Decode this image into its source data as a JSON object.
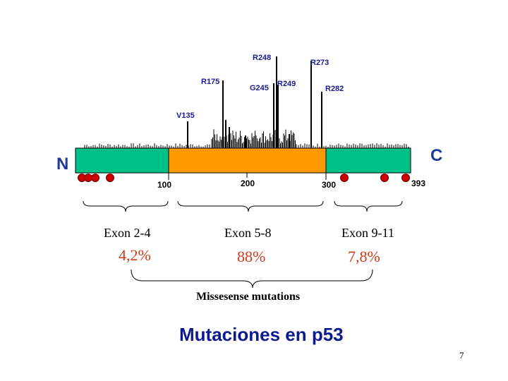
{
  "hotspots": [
    "R248",
    "R273",
    "R175",
    "G245",
    "R249",
    "R282",
    "V135"
  ],
  "terminals": {
    "n": "N",
    "c": "C"
  },
  "ticks": [
    "100",
    "200",
    "300",
    "393"
  ],
  "exons": [
    {
      "label": "Exon 2-4",
      "percent": "4,2%"
    },
    {
      "label": "Exon 5-8",
      "percent": "88%"
    },
    {
      "label": "Exon 9-11",
      "percent": "7,8%"
    }
  ],
  "missense_label": "Missesense mutations",
  "title": "Mutaciones en p53",
  "page_number": "7",
  "colors": {
    "side_domain": "#00c08a",
    "central_domain": "#ff9900",
    "mutation_dot": "#cc0000",
    "title": "#0d1a8c",
    "percent": "#cc3a1a",
    "hotspot_label": "#1a1a8c"
  }
}
